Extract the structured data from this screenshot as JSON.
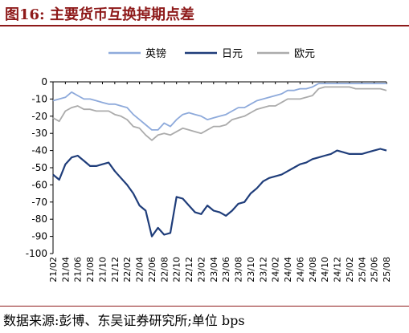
{
  "header": {
    "title": "图16:  主要货币互换掉期点差"
  },
  "footer": {
    "source": "数据来源:彭博、东吴证券研究所;单位 bps"
  },
  "chart_data": {
    "type": "line",
    "title": "图16:  主要货币互换掉期点差",
    "xlabel": "",
    "ylabel": "",
    "unit": "bps",
    "ylim": [
      -100,
      0
    ],
    "yticks": [
      0,
      -10,
      -20,
      -30,
      -40,
      -50,
      -60,
      -70,
      -80,
      -90,
      -100
    ],
    "x_tick_labels": [
      "21/02",
      "21/04",
      "21/06",
      "21/08",
      "21/10",
      "21/12",
      "22/02",
      "22/04",
      "22/06",
      "22/08",
      "22/10",
      "22/12",
      "23/02",
      "23/04",
      "23/06",
      "23/08",
      "23/10",
      "23/12",
      "24/02",
      "24/04",
      "24/06",
      "24/08",
      "24/10",
      "24/12",
      "25/02",
      "25/04",
      "25/06",
      "25/08"
    ],
    "legend_position": "top",
    "grid": false,
    "x": [
      "21/02",
      "21/03",
      "21/04",
      "21/05",
      "21/06",
      "21/07",
      "21/08",
      "21/09",
      "21/10",
      "21/11",
      "21/12",
      "22/01",
      "22/02",
      "22/03",
      "22/04",
      "22/05",
      "22/06",
      "22/07",
      "22/08",
      "22/09",
      "22/10",
      "22/11",
      "22/12",
      "23/01",
      "23/02",
      "23/03",
      "23/04",
      "23/05",
      "23/06",
      "23/07",
      "23/08",
      "23/09",
      "23/10",
      "23/11",
      "23/12",
      "24/01",
      "24/02",
      "24/03",
      "24/04",
      "24/05",
      "24/06",
      "24/07",
      "24/08",
      "24/09",
      "24/10",
      "24/11",
      "24/12",
      "25/01",
      "25/02",
      "25/03",
      "25/04",
      "25/05",
      "25/06",
      "25/07",
      "25/08"
    ],
    "series": [
      {
        "name": "英镑",
        "color": "#8eaadb",
        "values": [
          -11,
          -10,
          -9,
          -6,
          -8,
          -10,
          -10,
          -11,
          -12,
          -13,
          -13,
          -14,
          -15,
          -19,
          -22,
          -25,
          -28,
          -28,
          -24,
          -26,
          -22,
          -19,
          -18,
          -19,
          -20,
          -22,
          -21,
          -20,
          -19,
          -17,
          -15,
          -15,
          -13,
          -11,
          -10,
          -9,
          -8,
          -7,
          -5,
          -5,
          -4,
          -4,
          -3,
          -1,
          -1,
          -1,
          -1,
          -1,
          -1,
          -1,
          -1,
          -1,
          -1,
          -1,
          -1
        ]
      },
      {
        "name": "日元",
        "color": "#1f3d7a",
        "values": [
          -54,
          -57,
          -48,
          -44,
          -43,
          -46,
          -49,
          -49,
          -48,
          -47,
          -52,
          -56,
          -60,
          -65,
          -72,
          -75,
          -90,
          -85,
          -89,
          -88,
          -67,
          -68,
          -72,
          -76,
          -77,
          -72,
          -75,
          -76,
          -78,
          -75,
          -71,
          -70,
          -65,
          -62,
          -58,
          -56,
          -55,
          -54,
          -52,
          -50,
          -48,
          -47,
          -45,
          -44,
          -43,
          -42,
          -40,
          -41,
          -42,
          -42,
          -42,
          -41,
          -40,
          -39,
          -40
        ]
      },
      {
        "name": "欧元",
        "color": "#ababab",
        "values": [
          -21,
          -23,
          -17,
          -15,
          -14,
          -16,
          -16,
          -17,
          -17,
          -17,
          -19,
          -20,
          -22,
          -26,
          -27,
          -31,
          -34,
          -31,
          -30,
          -31,
          -29,
          -27,
          -28,
          -29,
          -30,
          -28,
          -26,
          -26,
          -25,
          -22,
          -21,
          -20,
          -18,
          -16,
          -15,
          -14,
          -14,
          -12,
          -10,
          -10,
          -10,
          -9,
          -8,
          -4,
          -3,
          -3,
          -3,
          -3,
          -3,
          -4,
          -4,
          -4,
          -4,
          -4,
          -5
        ]
      }
    ]
  }
}
